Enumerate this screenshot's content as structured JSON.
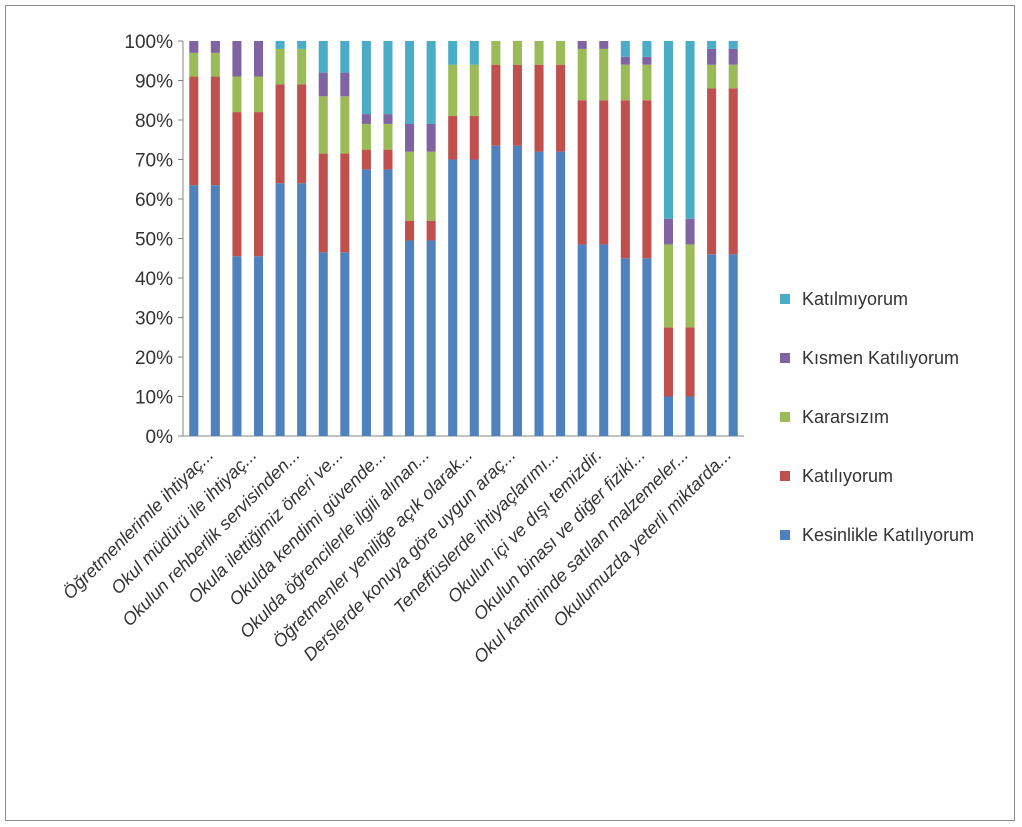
{
  "chart_data": {
    "type": "bar",
    "stacked": true,
    "percent": true,
    "ylim": [
      0,
      100
    ],
    "y_ticks": [
      "0%",
      "10%",
      "20%",
      "30%",
      "40%",
      "50%",
      "60%",
      "70%",
      "80%",
      "90%",
      "100%"
    ],
    "categories": [
      "Öğretmenlerimle ihtiyaç...",
      "Okul müdürü ile ihtiyaç...",
      "Okulun rehberlik servisinden...",
      "Okula ilettiğimiz öneri ve...",
      "Okulda kendimi güvende...",
      "Okulda öğrencilerle ilgili alınan...",
      "Öğretmenler yeniliğe açık olarak...",
      "Derslerde konuya göre uygun araç...",
      "Teneffüslerde ihtiyaçlarımı...",
      "Okulun içi ve dışı temizdir.",
      "Okulun binası ve diğer fiziki...",
      "Okul kantininde satılan malzemeler...",
      "Okulumuzda yeterli miktarda..."
    ],
    "bars_per_category": 2,
    "series": [
      {
        "name": "Kesinlikle Katılıyorum",
        "color": "#4f81bd",
        "values": [
          63.5,
          45.5,
          64,
          46.5,
          67.5,
          49.5,
          70,
          73.5,
          72,
          48.5,
          45,
          10,
          46
        ]
      },
      {
        "name": "Katılıyorum",
        "color": "#c0504d",
        "values": [
          27.5,
          36.5,
          25,
          25,
          5,
          5,
          11,
          20.5,
          22,
          36.5,
          40,
          17.5,
          42
        ]
      },
      {
        "name": "Kararsızım",
        "color": "#9bbb59",
        "values": [
          6,
          9,
          9,
          14.5,
          6.5,
          17.5,
          13,
          6,
          6,
          13,
          9,
          21,
          6
        ]
      },
      {
        "name": "Kısmen Katılıyorum",
        "color": "#8064a2",
        "values": [
          3,
          9,
          0,
          6,
          2.5,
          7,
          0,
          0,
          0,
          2,
          2,
          6.5,
          4
        ]
      },
      {
        "name": "Katılmıyorum",
        "color": "#4bacc6",
        "values": [
          0,
          0,
          2,
          8,
          18.5,
          21,
          6,
          0,
          0,
          0,
          4,
          45,
          2
        ]
      }
    ],
    "legend_position": "right",
    "grid": false
  }
}
